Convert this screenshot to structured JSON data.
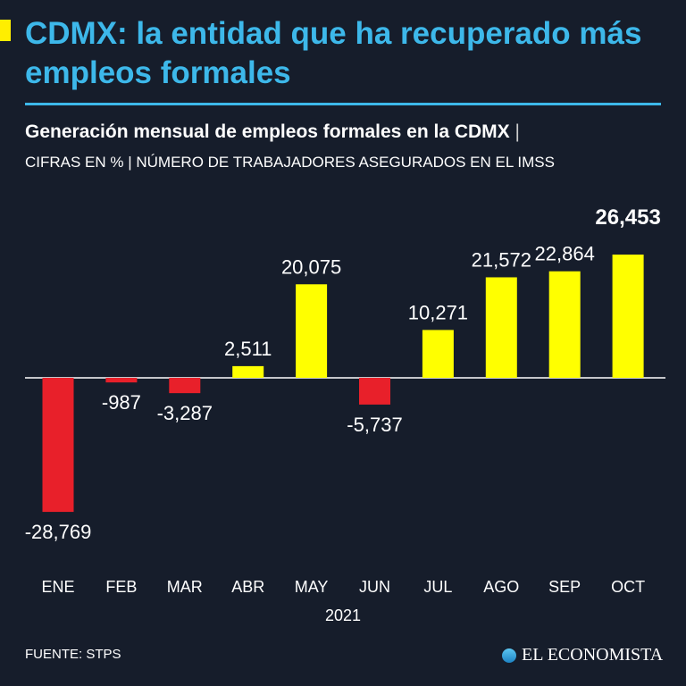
{
  "header": {
    "title": "CDMX: la entidad que ha recuperado más empleos formales",
    "subtitle": "Generación mensual de empleos formales en la CDMX",
    "subtitle_separator": "|",
    "units": "CIFRAS EN % | NÚMERO DE TRABAJADORES ASEGURADOS EN EL IMSS"
  },
  "chart_data": {
    "type": "bar",
    "title": "Generación mensual de empleos formales en la CDMX",
    "categories": [
      "ENE",
      "FEB",
      "MAR",
      "ABR",
      "MAY",
      "JUN",
      "JUL",
      "AGO",
      "SEP",
      "OCT"
    ],
    "values": [
      -28769,
      -987,
      -3287,
      2511,
      20075,
      -5737,
      10271,
      21572,
      22864,
      26453
    ],
    "data_labels": [
      "-28,769",
      "-987",
      "-3,287",
      "2,511",
      "20,075",
      "-5,737",
      "10,271",
      "21,572",
      "22,864",
      "26,453"
    ],
    "xlabel": "2021",
    "ylabel": "",
    "ylim": [
      -30000,
      30000
    ],
    "grid": false,
    "colors": {
      "positive": "#ffff00",
      "negative": "#e8202a"
    },
    "highlight_index": 9
  },
  "footer": {
    "source": "FUENTE: STPS",
    "logo_text": "EL ECONOMISTA"
  },
  "colors": {
    "background": "#161d2b",
    "accent": "#3db8ea",
    "marker": "#ffee00"
  }
}
